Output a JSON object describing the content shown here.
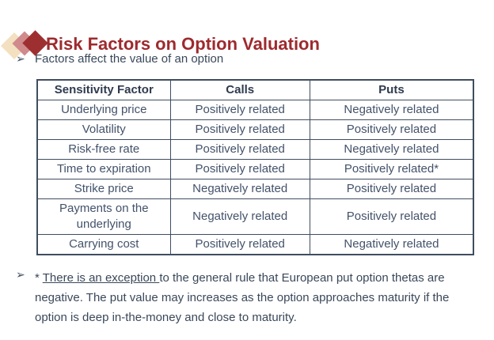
{
  "slide": {
    "title": "Risk Factors on Option Valuation",
    "bullet_char": "➢",
    "bullet1": "Factors affect the value of an option",
    "note": {
      "prefix": "* ",
      "underlined": "There is an exception ",
      "rest": "to the general rule that European put option thetas are negative. The put value may increases as the option approaches maturity if the option is deep in-the-money and close to maturity."
    }
  },
  "table": {
    "headers": [
      "Sensitivity Factor",
      "Calls",
      "Puts"
    ],
    "col_widths_pct": [
      30.5,
      32,
      37.5
    ],
    "rows": [
      [
        "Underlying price",
        "Positively related",
        "Negatively related"
      ],
      [
        "Volatility",
        "Positively related",
        "Positively related"
      ],
      [
        "Risk-free rate",
        "Positively related",
        "Negatively related"
      ],
      [
        "Time to expiration",
        "Positively related",
        "Positively related*"
      ],
      [
        "Strike price",
        "Negatively related",
        "Positively related"
      ],
      [
        "Payments on the underlying",
        "Negatively related",
        "Positively related"
      ],
      [
        "Carrying cost",
        "Positively related",
        "Negatively related"
      ]
    ]
  },
  "colors": {
    "title_red": "#9e2a2d",
    "body_text": "#3a485a",
    "table_border": "#3f4d5f",
    "icon_tan": "#f3e0c0",
    "icon_rose": "#d08a8c",
    "icon_dark_red": "#9e2f31"
  }
}
